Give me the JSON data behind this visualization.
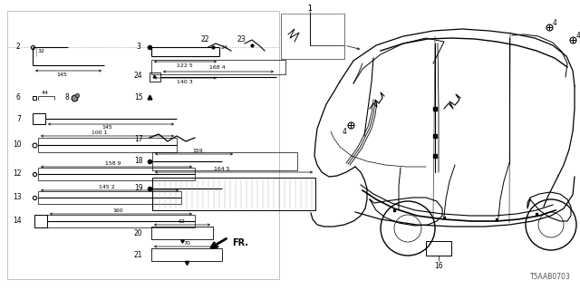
{
  "bg_color": "#ffffff",
  "diagram_code": "T5AAB0703",
  "fig_w": 6.4,
  "fig_h": 3.2,
  "dpi": 100
}
